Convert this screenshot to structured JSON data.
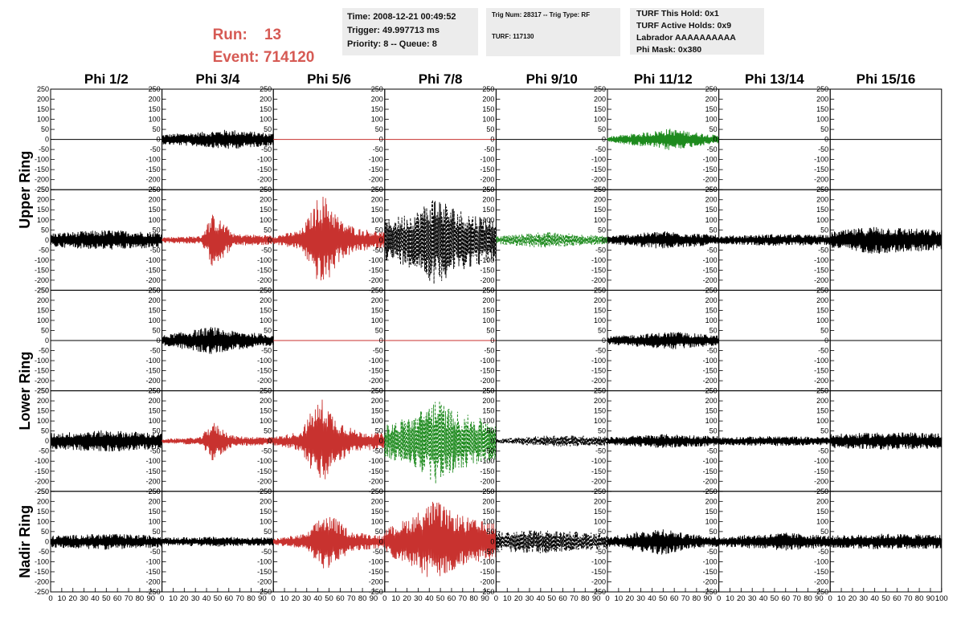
{
  "header": {
    "run_label": "Run:",
    "run_value": "13",
    "event_label": "Event:",
    "event_value": "714120",
    "time": "Time: 2008-12-21 00:49:52",
    "trigger": "Trigger: 49.997713 ms",
    "priority": "Priority: 8 -- Queue: 8",
    "trig_num": "Trig Num: 28317 -- Trig Type: RF",
    "turf": "TURF: 117130",
    "turf_this_hold": "TURF This Hold: 0x1",
    "turf_active_holds": "TURF Active Holds: 0x9",
    "labrador": "Labrador AAAAAAAAAA",
    "phi_mask": "Phi Mask: 0x380"
  },
  "colors": {
    "title_red": "#d65a54",
    "trace_black": "#000000",
    "trace_red": "#c8322f",
    "trace_green": "#1d8a1d",
    "infobox_bg": "#ececec"
  },
  "chart_data": {
    "type": "line",
    "columns": [
      "Phi 1/2",
      "Phi 3/4",
      "Phi 5/6",
      "Phi 7/8",
      "Phi 9/10",
      "Phi 11/12",
      "Phi 13/14",
      "Phi 15/16"
    ],
    "ring_labels": [
      "Upper Ring",
      "Lower Ring",
      "Nadir Ring"
    ],
    "ylim": [
      -250,
      250
    ],
    "xlim": [
      0,
      100
    ],
    "y_ticks": [
      "250",
      "200",
      "150",
      "100",
      "50",
      "0",
      "-50",
      "-100",
      "-150",
      "-200",
      "-250"
    ],
    "x_ticks": [
      "0",
      "10",
      "20",
      "30",
      "40",
      "50",
      "60",
      "70",
      "80",
      "90",
      "100"
    ],
    "grid": false,
    "panels": [
      [
        {
          "color": "black",
          "style": "solid",
          "envelope": [
            [
              0,
              0
            ],
            [
              100,
              0
            ]
          ]
        },
        {
          "color": "black",
          "style": "solid",
          "envelope": [
            [
              0,
              25
            ],
            [
              30,
              35
            ],
            [
              60,
              50
            ],
            [
              100,
              30
            ]
          ]
        },
        {
          "color": "red",
          "style": "solid",
          "envelope": [
            [
              0,
              0
            ],
            [
              100,
              0
            ]
          ]
        },
        {
          "color": "red",
          "style": "solid",
          "envelope": [
            [
              0,
              0
            ],
            [
              100,
              0
            ]
          ]
        },
        {
          "color": "black",
          "style": "solid",
          "envelope": [
            [
              0,
              0
            ],
            [
              100,
              0
            ]
          ]
        },
        {
          "color": "green",
          "style": "solid",
          "envelope": [
            [
              0,
              15
            ],
            [
              40,
              40
            ],
            [
              55,
              55
            ],
            [
              100,
              20
            ]
          ]
        },
        {
          "color": "black",
          "style": "solid",
          "envelope": [
            [
              0,
              0
            ],
            [
              100,
              0
            ]
          ]
        },
        {
          "color": "black",
          "style": "solid",
          "envelope": [
            [
              0,
              0
            ],
            [
              100,
              0
            ]
          ]
        }
      ],
      [
        {
          "color": "black",
          "style": "solid",
          "envelope": [
            [
              0,
              35
            ],
            [
              50,
              50
            ],
            [
              100,
              40
            ]
          ]
        },
        {
          "color": "red",
          "style": "solid",
          "envelope": [
            [
              0,
              15
            ],
            [
              35,
              20
            ],
            [
              45,
              130
            ],
            [
              55,
              90
            ],
            [
              65,
              30
            ],
            [
              100,
              25
            ]
          ]
        },
        {
          "color": "red",
          "style": "solid",
          "envelope": [
            [
              0,
              20
            ],
            [
              25,
              50
            ],
            [
              35,
              150
            ],
            [
              42,
              240
            ],
            [
              50,
              200
            ],
            [
              60,
              100
            ],
            [
              75,
              60
            ],
            [
              100,
              40
            ]
          ]
        },
        {
          "color": "black",
          "style": "dashed",
          "envelope": [
            [
              0,
              100
            ],
            [
              30,
              150
            ],
            [
              45,
              230
            ],
            [
              60,
              170
            ],
            [
              80,
              130
            ],
            [
              100,
              110
            ]
          ]
        },
        {
          "color": "green",
          "style": "dashed",
          "envelope": [
            [
              0,
              20
            ],
            [
              40,
              40
            ],
            [
              60,
              35
            ],
            [
              100,
              20
            ]
          ]
        },
        {
          "color": "black",
          "style": "solid",
          "envelope": [
            [
              0,
              20
            ],
            [
              50,
              45
            ],
            [
              100,
              25
            ]
          ]
        },
        {
          "color": "black",
          "style": "solid",
          "envelope": [
            [
              0,
              20
            ],
            [
              50,
              30
            ],
            [
              100,
              25
            ]
          ]
        },
        {
          "color": "black",
          "style": "solid",
          "envelope": [
            [
              0,
              40
            ],
            [
              40,
              70
            ],
            [
              100,
              50
            ]
          ]
        }
      ],
      [
        {
          "color": "black",
          "style": "solid",
          "envelope": [
            [
              0,
              0
            ],
            [
              100,
              0
            ]
          ]
        },
        {
          "color": "black",
          "style": "solid",
          "envelope": [
            [
              0,
              25
            ],
            [
              45,
              70
            ],
            [
              60,
              50
            ],
            [
              100,
              30
            ]
          ]
        },
        {
          "color": "red",
          "style": "solid",
          "envelope": [
            [
              0,
              0
            ],
            [
              100,
              0
            ]
          ]
        },
        {
          "color": "red",
          "style": "solid",
          "envelope": [
            [
              0,
              0
            ],
            [
              100,
              0
            ]
          ]
        },
        {
          "color": "black",
          "style": "solid",
          "envelope": [
            [
              0,
              0
            ],
            [
              100,
              0
            ]
          ]
        },
        {
          "color": "black",
          "style": "solid",
          "envelope": [
            [
              0,
              20
            ],
            [
              60,
              45
            ],
            [
              100,
              25
            ]
          ]
        },
        {
          "color": "black",
          "style": "solid",
          "envelope": [
            [
              0,
              0
            ],
            [
              100,
              0
            ]
          ]
        },
        {
          "color": "black",
          "style": "solid",
          "envelope": [
            [
              0,
              0
            ],
            [
              100,
              0
            ]
          ]
        }
      ],
      [
        {
          "color": "black",
          "style": "solid",
          "envelope": [
            [
              0,
              40
            ],
            [
              50,
              55
            ],
            [
              100,
              40
            ]
          ]
        },
        {
          "color": "red",
          "style": "solid",
          "envelope": [
            [
              0,
              10
            ],
            [
              35,
              20
            ],
            [
              45,
              100
            ],
            [
              55,
              60
            ],
            [
              65,
              25
            ],
            [
              100,
              20
            ]
          ]
        },
        {
          "color": "red",
          "style": "solid",
          "envelope": [
            [
              0,
              20
            ],
            [
              25,
              50
            ],
            [
              35,
              160
            ],
            [
              45,
              220
            ],
            [
              55,
              120
            ],
            [
              75,
              50
            ],
            [
              100,
              40
            ]
          ]
        },
        {
          "color": "green",
          "style": "dashed",
          "envelope": [
            [
              0,
              80
            ],
            [
              30,
              140
            ],
            [
              45,
              220
            ],
            [
              60,
              160
            ],
            [
              80,
              120
            ],
            [
              100,
              100
            ]
          ]
        },
        {
          "color": "black",
          "style": "dashed",
          "envelope": [
            [
              0,
              10
            ],
            [
              50,
              30
            ],
            [
              100,
              25
            ]
          ]
        },
        {
          "color": "black",
          "style": "solid",
          "envelope": [
            [
              0,
              20
            ],
            [
              50,
              35
            ],
            [
              100,
              25
            ]
          ]
        },
        {
          "color": "black",
          "style": "solid",
          "envelope": [
            [
              0,
              20
            ],
            [
              50,
              25
            ],
            [
              100,
              20
            ]
          ]
        },
        {
          "color": "black",
          "style": "solid",
          "envelope": [
            [
              0,
              35
            ],
            [
              50,
              45
            ],
            [
              100,
              40
            ]
          ]
        }
      ],
      [
        {
          "color": "black",
          "style": "solid",
          "envelope": [
            [
              0,
              30
            ],
            [
              50,
              40
            ],
            [
              100,
              30
            ]
          ]
        },
        {
          "color": "black",
          "style": "solid",
          "envelope": [
            [
              0,
              20
            ],
            [
              50,
              25
            ],
            [
              100,
              20
            ]
          ]
        },
        {
          "color": "red",
          "style": "solid",
          "envelope": [
            [
              0,
              15
            ],
            [
              30,
              40
            ],
            [
              45,
              140
            ],
            [
              55,
              120
            ],
            [
              70,
              50
            ],
            [
              100,
              30
            ]
          ]
        },
        {
          "color": "red",
          "style": "solid",
          "envelope": [
            [
              0,
              60
            ],
            [
              25,
              130
            ],
            [
              45,
              210
            ],
            [
              60,
              150
            ],
            [
              80,
              110
            ],
            [
              100,
              90
            ]
          ]
        },
        {
          "color": "black",
          "style": "dashed",
          "envelope": [
            [
              0,
              50
            ],
            [
              40,
              60
            ],
            [
              100,
              40
            ]
          ]
        },
        {
          "color": "black",
          "style": "solid",
          "envelope": [
            [
              0,
              25
            ],
            [
              50,
              70
            ],
            [
              70,
              40
            ],
            [
              100,
              25
            ]
          ]
        },
        {
          "color": "black",
          "style": "solid",
          "envelope": [
            [
              0,
              25
            ],
            [
              60,
              45
            ],
            [
              100,
              30
            ]
          ]
        },
        {
          "color": "black",
          "style": "solid",
          "envelope": [
            [
              0,
              30
            ],
            [
              50,
              40
            ],
            [
              100,
              35
            ]
          ]
        }
      ]
    ]
  }
}
